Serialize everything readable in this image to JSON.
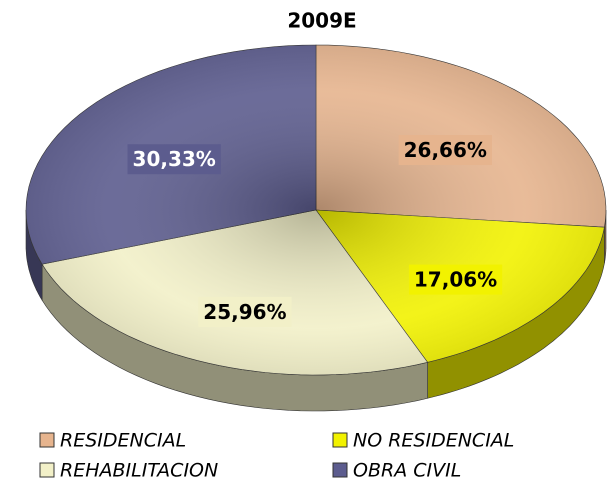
{
  "chart_data": {
    "type": "pie",
    "title": "2009E",
    "categories": [
      "RESIDENCIAL",
      "NO RESIDENCIAL",
      "REHABILITACION",
      "OBRA CIVIL"
    ],
    "values": [
      26.66,
      17.06,
      25.96,
      30.33
    ],
    "value_labels": [
      "26,66%",
      "17,06%",
      "25,96%",
      "30,33%"
    ],
    "colors": [
      "#e6b48e",
      "#f2f200",
      "#f2f0c8",
      "#5c5c8e"
    ],
    "legend": "bottom"
  }
}
